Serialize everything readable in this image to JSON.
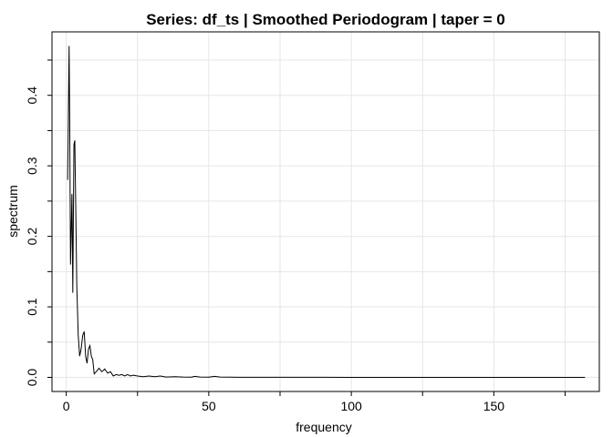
{
  "chart_data": {
    "type": "line",
    "title": "Series: df_ts  |  Smoothed Periodogram  |  taper = 0",
    "xlabel": "frequency",
    "ylabel": "spectrum",
    "xlim": [
      -5,
      187
    ],
    "ylim": [
      -0.02,
      0.49
    ],
    "xticks": [
      0,
      50,
      100,
      150
    ],
    "xtick_labels": [
      "0",
      "50",
      "100",
      "150"
    ],
    "xgrid": [
      0,
      25,
      50,
      75,
      100,
      125,
      150,
      175
    ],
    "yticks": [
      0.0,
      0.1,
      0.2,
      0.3,
      0.4
    ],
    "ytick_labels": [
      "0.0",
      "0.1",
      "0.2",
      "0.3",
      "0.4"
    ],
    "ygrid": [
      0.0,
      0.05,
      0.1,
      0.15,
      0.2,
      0.25,
      0.3,
      0.35,
      0.4,
      0.45
    ],
    "grid": true,
    "series": [
      {
        "color": "#000000",
        "x": [
          0.5,
          1.0,
          1.2,
          1.5,
          2.0,
          2.3,
          2.7,
          3.0,
          3.3,
          3.7,
          4.2,
          4.7,
          5.2,
          5.8,
          6.3,
          6.8,
          7.3,
          7.8,
          8.3,
          8.8,
          9.3,
          9.8,
          10.5,
          11.5,
          12.5,
          13.5,
          14.5,
          15.5,
          16.5,
          17.5,
          18.5,
          19.5,
          20.5,
          21.5,
          22.5,
          23.5,
          25,
          27,
          29,
          31,
          33,
          35,
          38,
          41,
          44,
          45,
          47,
          50,
          52,
          54,
          57,
          60,
          70,
          80,
          90,
          100,
          120,
          140,
          160,
          182
        ],
        "y": [
          0.28,
          0.47,
          0.37,
          0.16,
          0.26,
          0.12,
          0.33,
          0.336,
          0.25,
          0.13,
          0.06,
          0.03,
          0.04,
          0.06,
          0.065,
          0.03,
          0.02,
          0.04,
          0.045,
          0.03,
          0.025,
          0.005,
          0.008,
          0.013,
          0.008,
          0.012,
          0.006,
          0.008,
          0.002,
          0.004,
          0.003,
          0.004,
          0.002,
          0.004,
          0.002,
          0.003,
          0.002,
          0.001,
          0.002,
          0.001,
          0.002,
          0.0005,
          0.001,
          0.0005,
          0.0003,
          0.0015,
          0.0005,
          0.0003,
          0.0015,
          0.0005,
          0.0003,
          0.0002,
          0.0001,
          0.0001,
          0.0001,
          0.0,
          0.0,
          0.0,
          0.0,
          0.0
        ]
      }
    ]
  }
}
